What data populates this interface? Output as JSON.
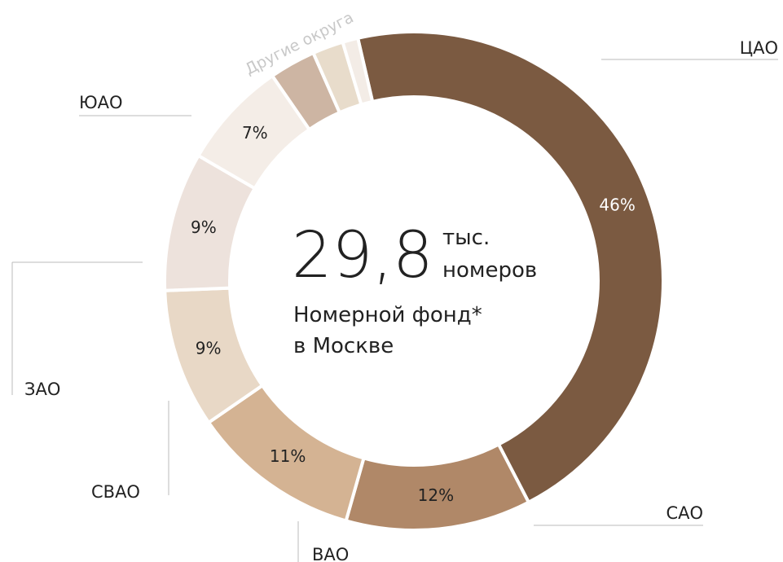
{
  "chart_data": {
    "type": "donut",
    "categories": [
      "ЦАО",
      "САО",
      "ВАО",
      "СВАО",
      "ЗАО",
      "ЮАО",
      null,
      null,
      null
    ],
    "values": [
      46,
      12,
      11,
      9,
      9,
      7,
      3,
      2,
      1
    ],
    "value_labels": [
      "46%",
      "12%",
      "11%",
      "9%",
      "9%",
      "7%",
      null,
      null,
      null
    ],
    "colors": [
      "#7b5a41",
      "#b08868",
      "#d4b393",
      "#e8d8c6",
      "#ede2dc",
      "#f4ede7",
      "#cdb5a3",
      "#e8dccb",
      "#f3ece6"
    ],
    "annotation": "Другие округа",
    "center_value": "29,8",
    "center_unit_1": "тыс.",
    "center_unit_2": "номеров",
    "center_caption_1": "Номерной фонд*",
    "center_caption_2": "в Москве"
  }
}
